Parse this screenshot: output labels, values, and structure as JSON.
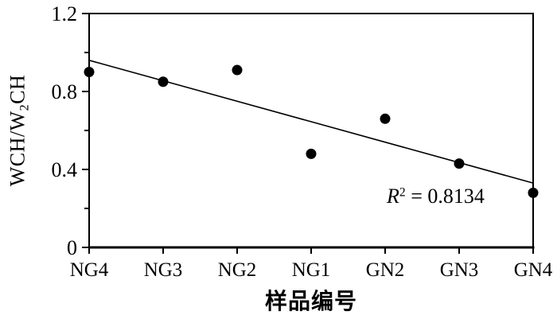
{
  "figure": {
    "background": "#ffffff",
    "text_color": "#000000",
    "y_axis_title": {
      "part1": "WCH/W",
      "subscript": "2",
      "part2": "CH"
    },
    "x_axis_title": "样品编号",
    "annotation": {
      "variable": "R",
      "superscript": "2",
      "rest": " = 0.8134"
    }
  },
  "chart_data": {
    "type": "scatter",
    "categories": [
      "NG4",
      "NG3",
      "NG2",
      "NG1",
      "GN2",
      "GN3",
      "GN4"
    ],
    "values": [
      0.9,
      0.85,
      0.91,
      0.48,
      0.66,
      0.43,
      0.28
    ],
    "title": "",
    "xlabel": "样品编号",
    "ylabel": "WCH/W2CH",
    "ylim": [
      0,
      1.2
    ],
    "y_major_ticks": [
      0,
      0.4,
      0.8,
      1.2
    ],
    "y_major_tick_labels": [
      "0",
      "0.4",
      "0.8",
      "1.2"
    ],
    "y_minor_ticks": [
      0.2,
      0.6,
      1.0
    ],
    "trendline": {
      "fit": "linear",
      "start_value": 0.96,
      "end_value": 0.33,
      "r_squared_text": "R² = 0.8134"
    },
    "marker_color": "#000000",
    "line_color": "#000000",
    "axis_color": "#000000",
    "grid": false,
    "legend": false
  }
}
